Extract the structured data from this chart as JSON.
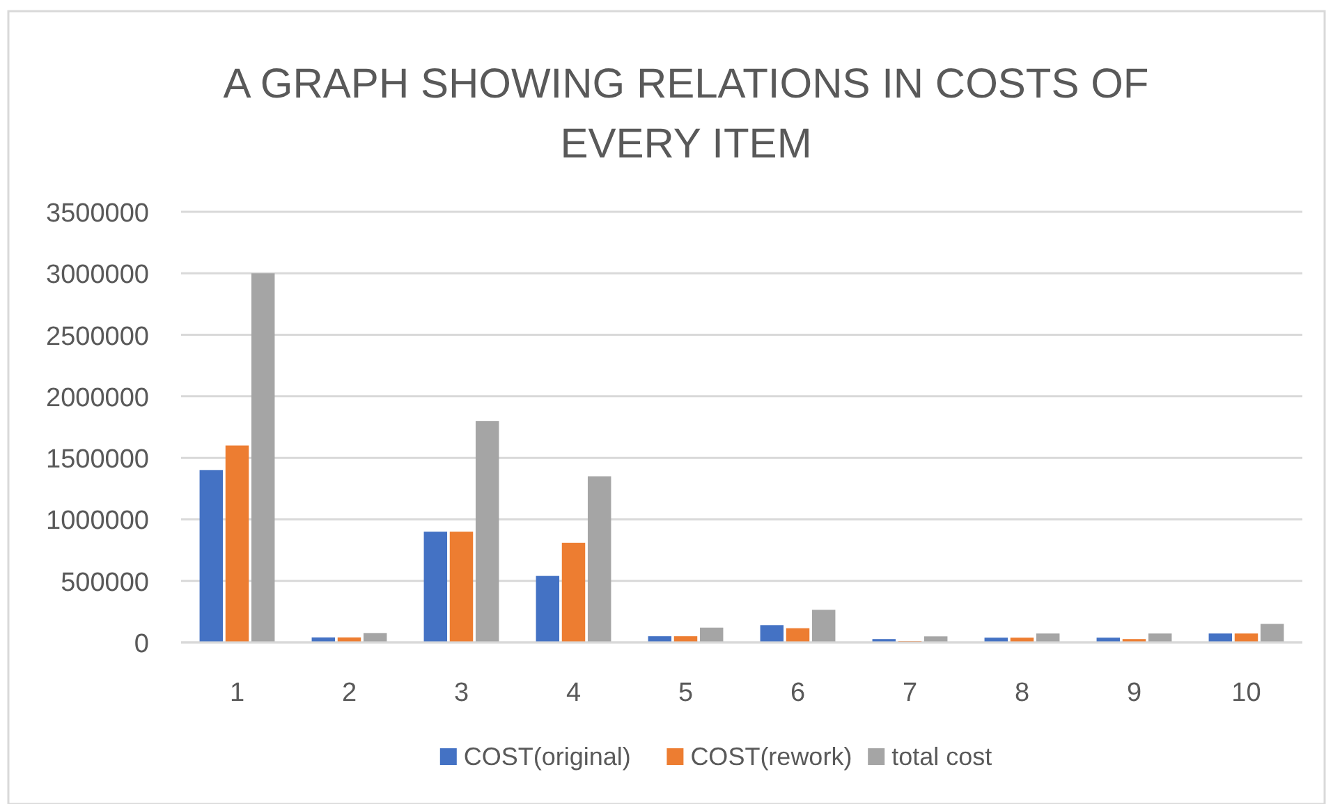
{
  "chart_data": {
    "type": "bar",
    "title": "A GRAPH SHOWING RELATIONS IN COSTS OF EVERY ITEM",
    "categories": [
      "1",
      "2",
      "3",
      "4",
      "5",
      "6",
      "7",
      "8",
      "9",
      "10"
    ],
    "series": [
      {
        "name": "COST(original)",
        "color": "#4472c4",
        "values": [
          1400000,
          40000,
          900000,
          540000,
          50000,
          140000,
          27000,
          38000,
          38000,
          72000
        ]
      },
      {
        "name": "COST(rework)",
        "color": "#ed7d31",
        "values": [
          1600000,
          40000,
          900000,
          810000,
          50000,
          115000,
          11000,
          38000,
          27000,
          72000
        ]
      },
      {
        "name": "total cost",
        "color": "#a5a5a5",
        "values": [
          3000000,
          75000,
          1800000,
          1350000,
          120000,
          265000,
          49000,
          72000,
          72000,
          150000
        ]
      }
    ],
    "ylim": [
      0,
      3500000
    ],
    "yticks": [
      0,
      500000,
      1000000,
      1500000,
      2000000,
      2500000,
      3000000,
      3500000
    ],
    "grid": "y",
    "legend": "bottom"
  }
}
